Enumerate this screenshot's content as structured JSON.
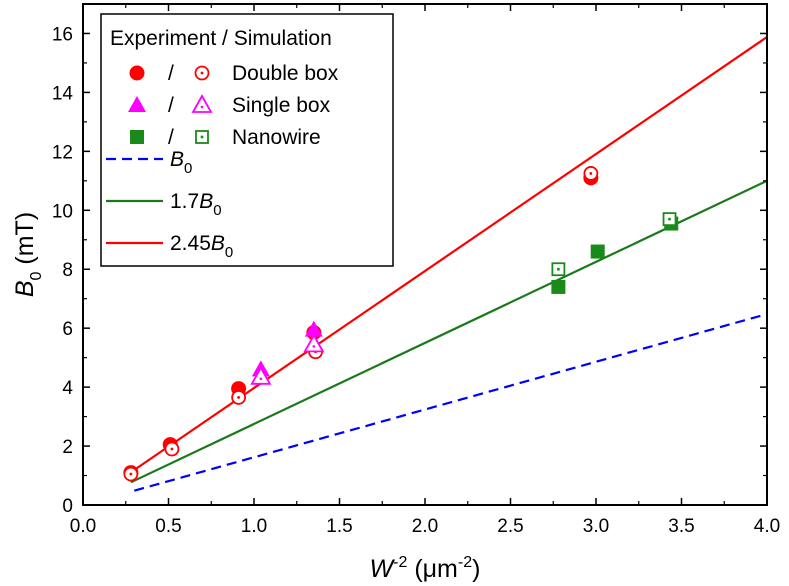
{
  "chart_data": {
    "type": "scatter",
    "xlim": [
      0,
      4
    ],
    "ylim": [
      0,
      17
    ],
    "x_ticks": [
      "0.0",
      "0.5",
      "1.0",
      "1.5",
      "2.0",
      "2.5",
      "3.0",
      "3.5",
      "4.0"
    ],
    "x_tick_values": [
      0,
      0.5,
      1,
      1.5,
      2,
      2.5,
      3,
      3.5,
      4
    ],
    "y_ticks": [
      "0",
      "2",
      "4",
      "6",
      "8",
      "10",
      "12",
      "14",
      "16"
    ],
    "y_tick_values": [
      0,
      2,
      4,
      6,
      8,
      10,
      12,
      14,
      16
    ],
    "xlabel": {
      "main": "W",
      "sup": "-2",
      "rest": " (μm",
      "sup2": "-2",
      "close": ")"
    },
    "ylabel": {
      "main": "B",
      "sub": "0",
      "rest": " (mT)"
    },
    "legend": {
      "title": "Experiment / Simulation",
      "slash": "/",
      "entries": [
        "Double box",
        "Single box",
        "Nanowire"
      ],
      "line_entries": [
        {
          "prefix": "",
          "italic": "B",
          "sub": "0"
        },
        {
          "prefix": "1.7",
          "italic": "B",
          "sub": "0"
        },
        {
          "prefix": "2.45",
          "italic": "B",
          "sub": "0"
        }
      ]
    },
    "series": [
      {
        "name": "Double box",
        "role": "experiment",
        "marker": "circle-filled",
        "color": "#ff0000",
        "points": [
          [
            0.28,
            1.1
          ],
          [
            0.51,
            2.05
          ],
          [
            0.91,
            3.95
          ],
          [
            1.35,
            5.85
          ],
          [
            2.97,
            11.1
          ]
        ]
      },
      {
        "name": "Double box",
        "role": "simulation",
        "marker": "circle-dot",
        "color": "#ff0000",
        "points": [
          [
            0.28,
            1.05
          ],
          [
            0.52,
            1.9
          ],
          [
            0.91,
            3.65
          ],
          [
            1.36,
            5.2
          ],
          [
            2.97,
            11.25
          ]
        ]
      },
      {
        "name": "Single box",
        "role": "experiment",
        "marker": "triangle-filled",
        "color": "#ff00ff",
        "points": [
          [
            1.04,
            4.6
          ],
          [
            1.35,
            5.95
          ]
        ]
      },
      {
        "name": "Single box",
        "role": "simulation",
        "marker": "triangle-dot",
        "color": "#ff00ff",
        "points": [
          [
            1.04,
            4.35
          ],
          [
            1.35,
            5.45
          ]
        ]
      },
      {
        "name": "Nanowire",
        "role": "experiment",
        "marker": "square-filled",
        "color": "#1a8a1a",
        "points": [
          [
            2.78,
            7.4
          ],
          [
            3.01,
            8.6
          ],
          [
            3.44,
            9.55
          ]
        ]
      },
      {
        "name": "Nanowire",
        "role": "simulation",
        "marker": "square-dot",
        "color": "#1a8a1a",
        "points": [
          [
            2.78,
            8.0
          ],
          [
            3.43,
            9.7
          ]
        ]
      }
    ],
    "lines": [
      {
        "name": "B0",
        "slope": 1.62,
        "x_start": 0.3,
        "x_end": 4.0,
        "color": "#0000ff",
        "style": "dashed"
      },
      {
        "name": "1.7B0",
        "slope": 2.75,
        "x_start": 0.28,
        "x_end": 4.0,
        "color": "#1a7a1a",
        "style": "solid"
      },
      {
        "name": "2.45B0",
        "slope": 3.97,
        "x_start": 0.28,
        "x_end": 4.0,
        "color": "#ff0000",
        "style": "solid"
      }
    ]
  }
}
